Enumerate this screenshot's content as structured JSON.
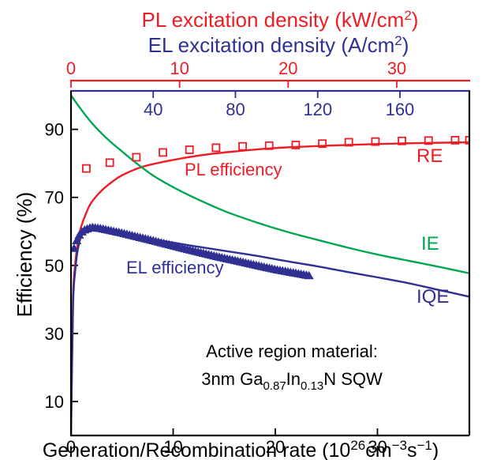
{
  "chart_data": {
    "type": "line",
    "title": "",
    "xlabel": {
      "main": "Generation/Recombination rate (10",
      "sup1": "26",
      "mid1": "cm",
      "sup2": "−3",
      "mid2": "s",
      "sup3": "−1",
      "end": ")"
    },
    "ylabel": "Efficiency (%)",
    "x_axis": {
      "range": [
        0,
        39
      ],
      "ticks": [
        0,
        10,
        20,
        30
      ],
      "tick_labels": [
        "0",
        "10",
        "20",
        "30"
      ]
    },
    "y_axis": {
      "range": [
        0,
        102
      ],
      "ticks": [
        10,
        30,
        50,
        70,
        90
      ],
      "tick_labels": [
        "10",
        "30",
        "50",
        "70",
        "90"
      ]
    },
    "top_axis_pl": {
      "label_main": "PL excitation density (kW/cm",
      "label_sup": "2",
      "label_end": ")",
      "color": "#ee1c25",
      "ticks_in_x_units": [
        0,
        10.63,
        21.26,
        31.89
      ],
      "tick_labels": [
        "0",
        "10",
        "20",
        "30"
      ]
    },
    "top_axis_el": {
      "label_main": "EL excitation density (A/cm",
      "label_sup": "2",
      "label_end": ")",
      "color": "#2e3192",
      "ticks_in_x_units": [
        8.05,
        16.1,
        24.15,
        32.2
      ],
      "tick_labels": [
        "40",
        "80",
        "120",
        "160"
      ]
    },
    "series": [
      {
        "name": "RE",
        "color": "#ee1c25",
        "style": "line",
        "x": [
          0,
          0.2,
          0.4,
          0.6,
          0.8,
          1,
          1.5,
          2,
          3,
          4,
          5,
          7,
          10,
          13,
          16,
          20,
          25,
          30,
          35,
          39
        ],
        "y": [
          0,
          40,
          50,
          55.5,
          59,
          61.5,
          65.5,
          68.5,
          72,
          74.5,
          76.5,
          79,
          81,
          82.5,
          83.5,
          84.5,
          85.2,
          85.7,
          86,
          86.2
        ]
      },
      {
        "name": "IE",
        "color": "#00a651",
        "style": "line",
        "x": [
          0,
          1,
          2,
          3,
          4,
          5,
          6,
          8,
          10,
          12,
          15,
          18,
          21,
          24,
          27,
          30,
          33,
          36,
          39
        ],
        "y": [
          100,
          95.8,
          92,
          88.8,
          86,
          83.5,
          81,
          76.5,
          73,
          70,
          66,
          62.8,
          60,
          57.6,
          55.3,
          53.2,
          51.4,
          49.6,
          47.7
        ]
      },
      {
        "name": "IQE",
        "color": "#2e3192",
        "style": "line",
        "x": [
          0,
          0.2,
          0.4,
          0.6,
          0.8,
          1,
          1.5,
          2,
          2.5,
          3,
          4,
          5,
          6,
          8,
          10,
          12,
          15,
          18,
          21,
          24,
          27,
          30,
          33,
          36,
          39
        ],
        "y": [
          0,
          38,
          48,
          53.5,
          56.5,
          58.5,
          60.5,
          60.8,
          60.7,
          60.4,
          59.8,
          59.2,
          58.7,
          57.7,
          56.7,
          55.7,
          54.3,
          52.9,
          51.3,
          49.8,
          48.1,
          46.5,
          44.8,
          42.8,
          40.8
        ]
      },
      {
        "name": "PL efficiency",
        "color": "#ee1c25",
        "style": "square-markers",
        "x": [
          1.5,
          3.8,
          6.4,
          9,
          11.6,
          14.2,
          16.8,
          19.4,
          22,
          24.6,
          27.2,
          29.8,
          32.4,
          35,
          37.6,
          39
        ],
        "y": [
          78.5,
          80.2,
          81.8,
          83.2,
          84,
          84.6,
          85,
          85.2,
          85.4,
          85.8,
          86.2,
          86.4,
          86.6,
          86.7,
          86.8,
          86.8
        ]
      },
      {
        "name": "EL efficiency",
        "color": "#2e3192",
        "style": "triangle-markers",
        "x_start": 0.3,
        "x_end": 23.3,
        "n_points": 90,
        "y_curve": {
          "x": [
            0.3,
            0.7,
            1.2,
            2,
            3,
            5,
            8,
            11,
            14,
            17,
            20,
            23.3
          ],
          "y": [
            55,
            58.5,
            60.3,
            61.2,
            60.8,
            59.5,
            57.3,
            55,
            52.8,
            50.8,
            48.8,
            47
          ]
        }
      }
    ],
    "annotations": {
      "re": "RE",
      "ie": "IE",
      "iqe": "IQE",
      "pl_eff": "PL efficiency",
      "el_eff": "EL efficiency",
      "material_line1": "Active region material:",
      "material_line2": {
        "a": "3nm Ga",
        "s1": "0.87",
        "b": "In",
        "s2": "0.13",
        "c": "N SQW"
      }
    },
    "grid": false,
    "legend": "none"
  }
}
